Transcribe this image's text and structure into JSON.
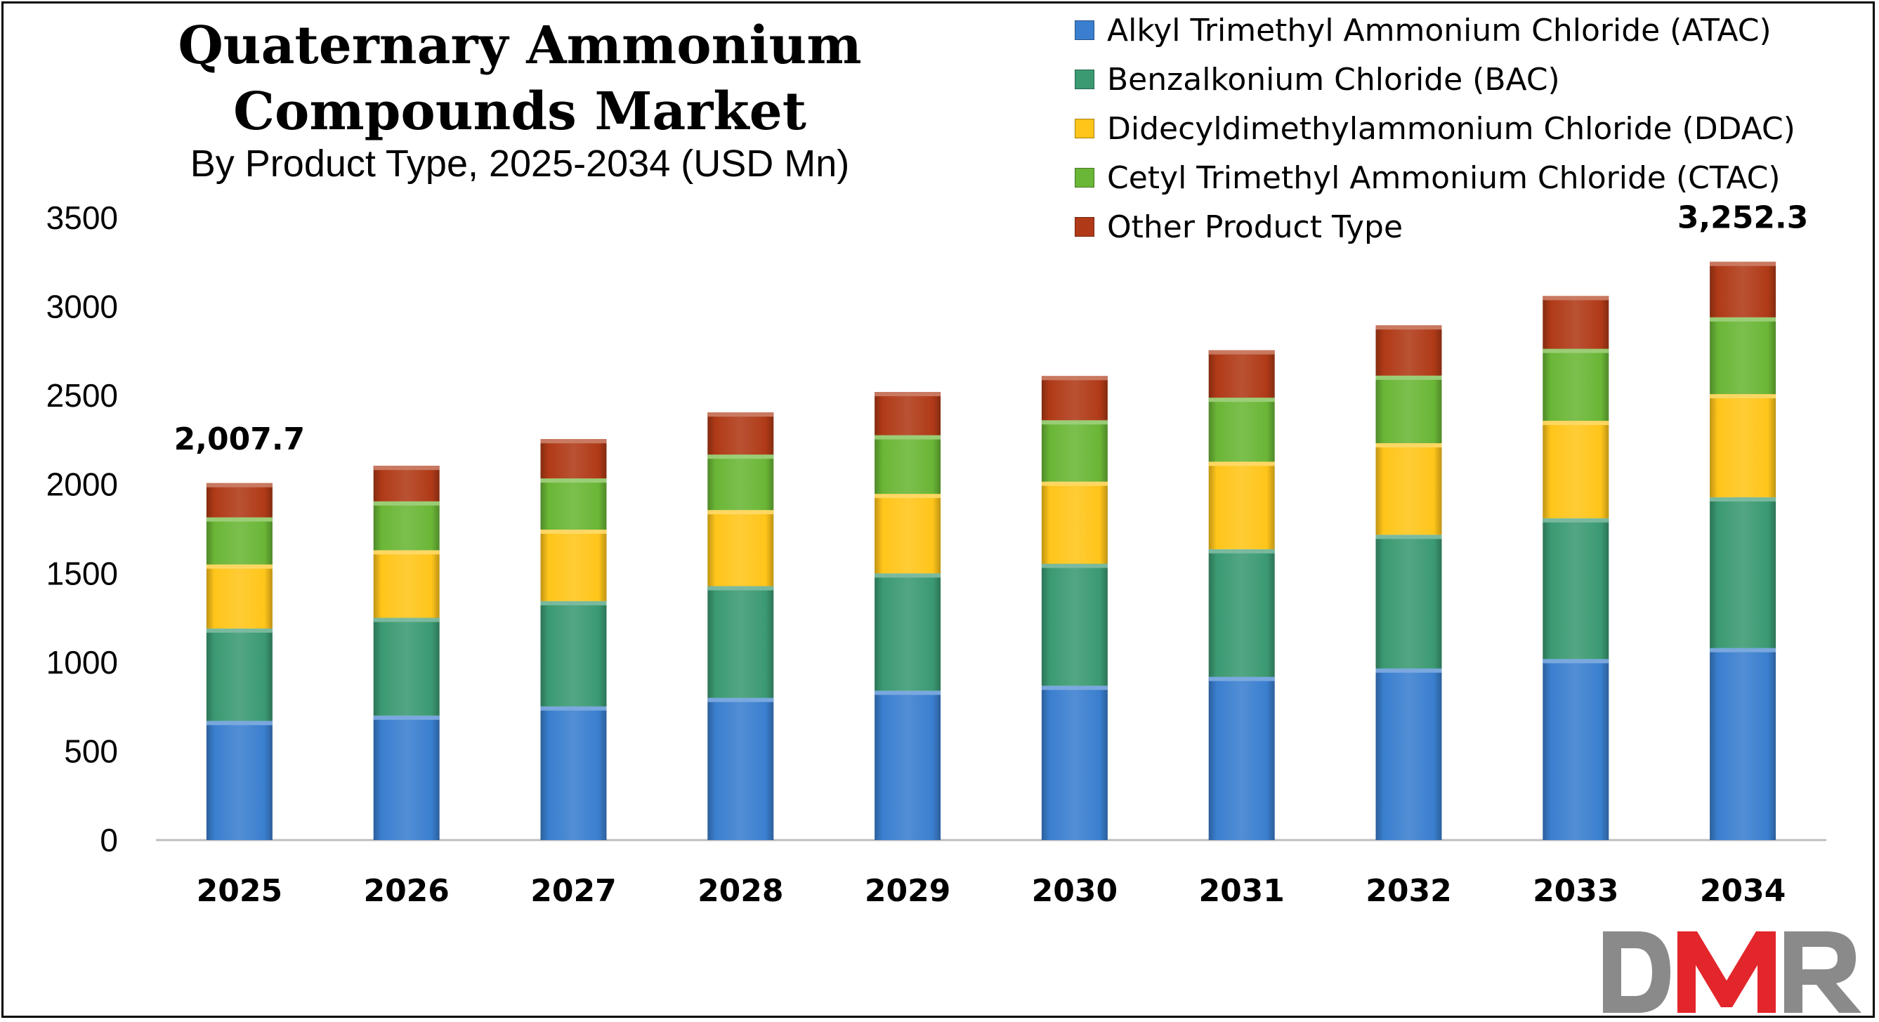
{
  "chart_data": {
    "type": "bar",
    "stacked": true,
    "title": "Quaternary Ammonium Compounds Market",
    "subtitle": "By Product Type, 2025-2034 (USD Mn)",
    "categories": [
      "2025",
      "2026",
      "2027",
      "2028",
      "2029",
      "2030",
      "2031",
      "2032",
      "2033",
      "2034"
    ],
    "series": [
      {
        "name": "Alkyl Trimethyl Ammonium Chloride (ATAC)",
        "color": "#3a7fcf",
        "values": [
          670,
          700,
          752,
          800,
          840,
          868,
          918,
          965,
          1018,
          1080
        ]
      },
      {
        "name": "Benzalkonium Chloride (BAC)",
        "color": "#3b9a72",
        "values": [
          520,
          550,
          592,
          628,
          660,
          686,
          718,
          752,
          792,
          848
        ]
      },
      {
        "name": "Didecyldimethylammonium Chloride (DDAC)",
        "color": "#ffc51a",
        "values": [
          360,
          380,
          402,
          428,
          447,
          462,
          492,
          515,
          548,
          580
        ]
      },
      {
        "name": "Cetyl Trimethyl Ammonium Chloride (CTAC)",
        "color": "#6ab636",
        "values": [
          265,
          275,
          288,
          312,
          330,
          345,
          360,
          380,
          405,
          432
        ]
      },
      {
        "name": "Other Product Type",
        "color": "#b03a17",
        "values": [
          192.7,
          200,
          221,
          237,
          243,
          249,
          267,
          283,
          297,
          312.3
        ]
      }
    ],
    "ylim": [
      0,
      3500
    ],
    "yticks": [
      0,
      500,
      1000,
      1500,
      2000,
      2500,
      3000,
      3500
    ],
    "grid": false,
    "legend_position": "top-right",
    "annotations": [
      {
        "category": "2025",
        "label": "2,007.7"
      },
      {
        "category": "2034",
        "label": "3,252.3"
      }
    ]
  },
  "logo": {
    "text": "DMR"
  }
}
